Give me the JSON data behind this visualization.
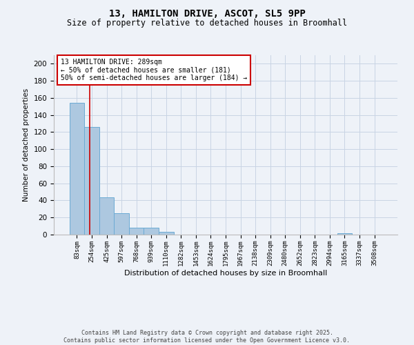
{
  "title": "13, HAMILTON DRIVE, ASCOT, SL5 9PP",
  "subtitle": "Size of property relative to detached houses in Broomhall",
  "xlabel": "Distribution of detached houses by size in Broomhall",
  "ylabel": "Number of detached properties",
  "bar_values": [
    154,
    126,
    44,
    25,
    8,
    8,
    3,
    0,
    0,
    0,
    0,
    0,
    0,
    0,
    0,
    0,
    0,
    0,
    2,
    0,
    0
  ],
  "bin_labels": [
    "83sqm",
    "254sqm",
    "425sqm",
    "597sqm",
    "768sqm",
    "939sqm",
    "1110sqm",
    "1282sqm",
    "1453sqm",
    "1624sqm",
    "1795sqm",
    "1967sqm",
    "2138sqm",
    "2309sqm",
    "2480sqm",
    "2652sqm",
    "2823sqm",
    "2994sqm",
    "3165sqm",
    "3337sqm",
    "3508sqm"
  ],
  "bar_color": "#adc8e0",
  "bar_edge_color": "#6aaad4",
  "grid_color": "#c8d4e4",
  "background_color": "#eef2f8",
  "red_line_x": 0.85,
  "annotation_text": "13 HAMILTON DRIVE: 289sqm\n← 50% of detached houses are smaller (181)\n50% of semi-detached houses are larger (184) →",
  "annotation_box_color": "#ffffff",
  "annotation_box_edge": "#cc0000",
  "annotation_text_color": "#000000",
  "footer_line1": "Contains HM Land Registry data © Crown copyright and database right 2025.",
  "footer_line2": "Contains public sector information licensed under the Open Government Licence v3.0.",
  "ylim": [
    0,
    210
  ],
  "yticks": [
    0,
    20,
    40,
    60,
    80,
    100,
    120,
    140,
    160,
    180,
    200
  ]
}
